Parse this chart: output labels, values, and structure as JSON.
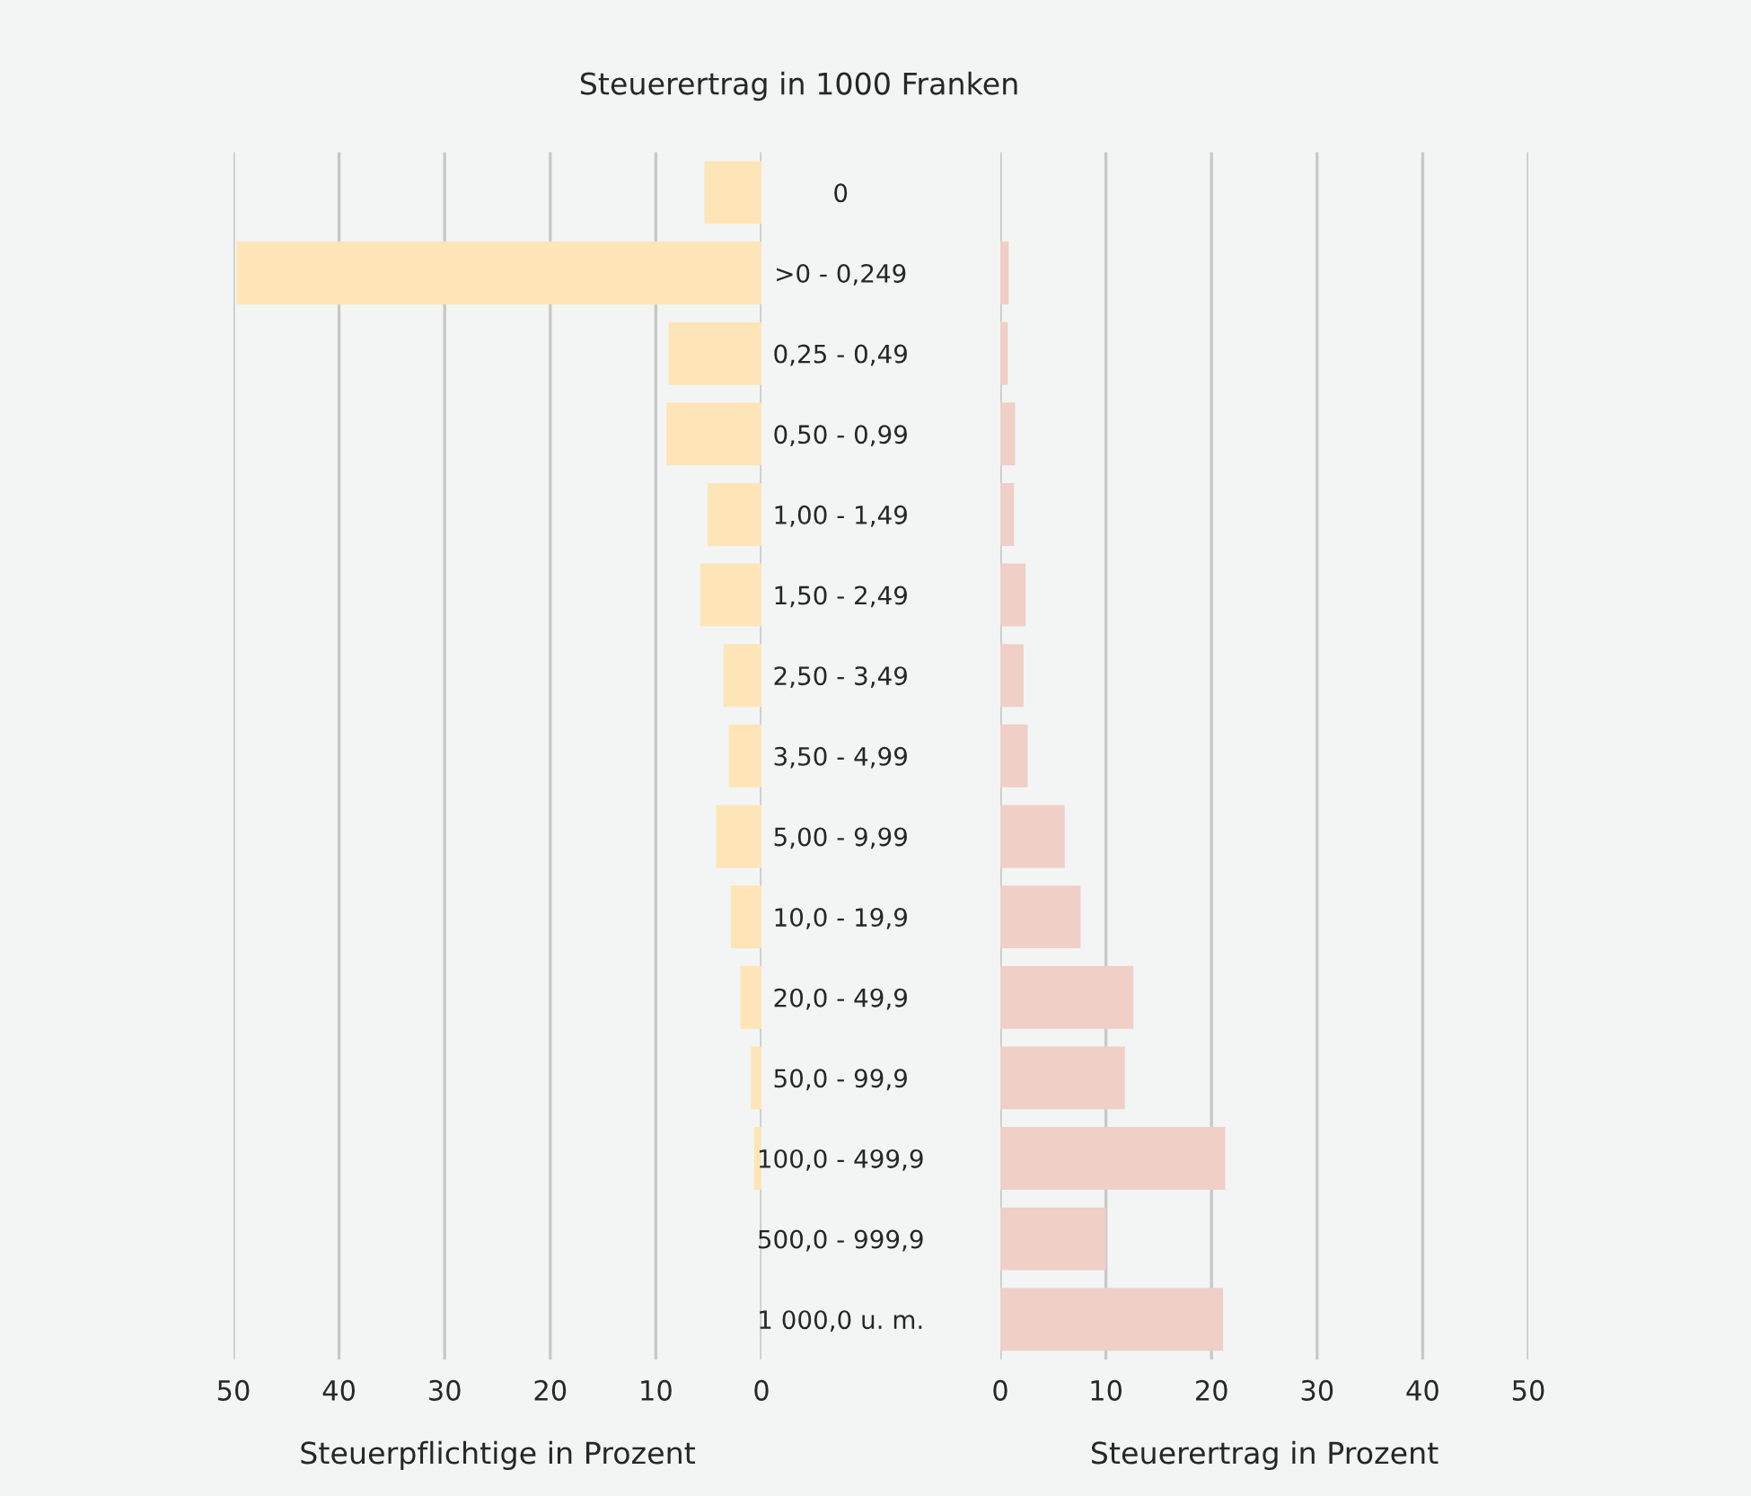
{
  "chart_data": [
    {
      "type": "bar",
      "orientation": "horizontal",
      "title": "Steuerertrag in 1000 Franken",
      "xlabel": "Steuerpflichtige in Prozent",
      "categories": [
        null,
        null,
        null,
        null,
        null,
        null,
        null,
        null,
        null,
        null,
        null,
        null,
        null,
        null,
        null
      ],
      "values": [
        5.4,
        49.7,
        8.8,
        9.0,
        5.1,
        5.8,
        3.6,
        3.1,
        4.3,
        2.9,
        2.0,
        1.0,
        0.7,
        null,
        null
      ],
      "color": "#fde5b8",
      "xlim": [
        50,
        0
      ],
      "xticks": [
        50,
        40,
        30,
        20,
        10,
        0
      ],
      "grid": "x"
    },
    {
      "type": "bar",
      "orientation": "horizontal",
      "xlabel": "Steuerertrag in Prozent",
      "categories": [
        "0",
        ">0 - 0,249",
        "0,25 - 0,49",
        "0,50 - 0,99",
        "1,00 - 1,49",
        "1,50 - 2,49",
        "2,50 - 3,49",
        "3,50 - 4,99",
        "5,00 - 9,99",
        "10,0 - 19,9",
        "20,0 - 49,9",
        "50,0 - 99,9",
        "100,0 - 499,9",
        "500,0 - 999,9",
        "1 000,0 u. m."
      ],
      "values": [
        0,
        0.8,
        0.7,
        1.4,
        1.3,
        2.4,
        2.2,
        2.6,
        6.1,
        7.6,
        12.6,
        11.8,
        21.3,
        10.0,
        21.1
      ],
      "color": "#f0cfc6",
      "xlim": [
        0,
        50
      ],
      "xticks": [
        0,
        10,
        20,
        30,
        40,
        50
      ],
      "grid": "x"
    }
  ]
}
